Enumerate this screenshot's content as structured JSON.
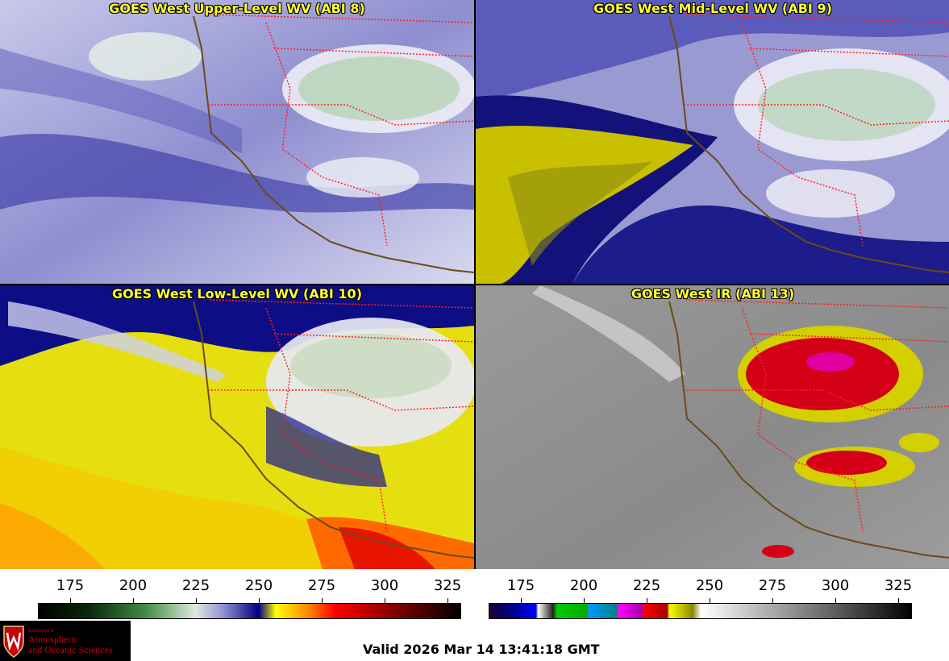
{
  "panels": [
    {
      "title": "GOES West Upper-Level WV (ABI 8)"
    },
    {
      "title": "GOES West Mid-Level WV (ABI 9)"
    },
    {
      "title": "GOES West Low-Level WV (ABI 10)"
    },
    {
      "title": "GOES West IR (ABI 13)"
    }
  ],
  "colorbars": {
    "wv": {
      "ticks": [
        "175",
        "200",
        "225",
        "250",
        "275",
        "300",
        "325"
      ]
    },
    "ir": {
      "ticks": [
        "175",
        "200",
        "225",
        "250",
        "275",
        "300",
        "325"
      ]
    }
  },
  "logo": {
    "dept": "Department of",
    "line1": "Atmospheric",
    "line2": "and Oceanic Sciences"
  },
  "valid_time": "Valid 2026 Mar 14 13:41:18 GMT",
  "colors": {
    "title_text": "#ffff33",
    "border_lines": "#ff2020",
    "coastline": "#6b4a1a",
    "logo_red": "#c5050c"
  }
}
